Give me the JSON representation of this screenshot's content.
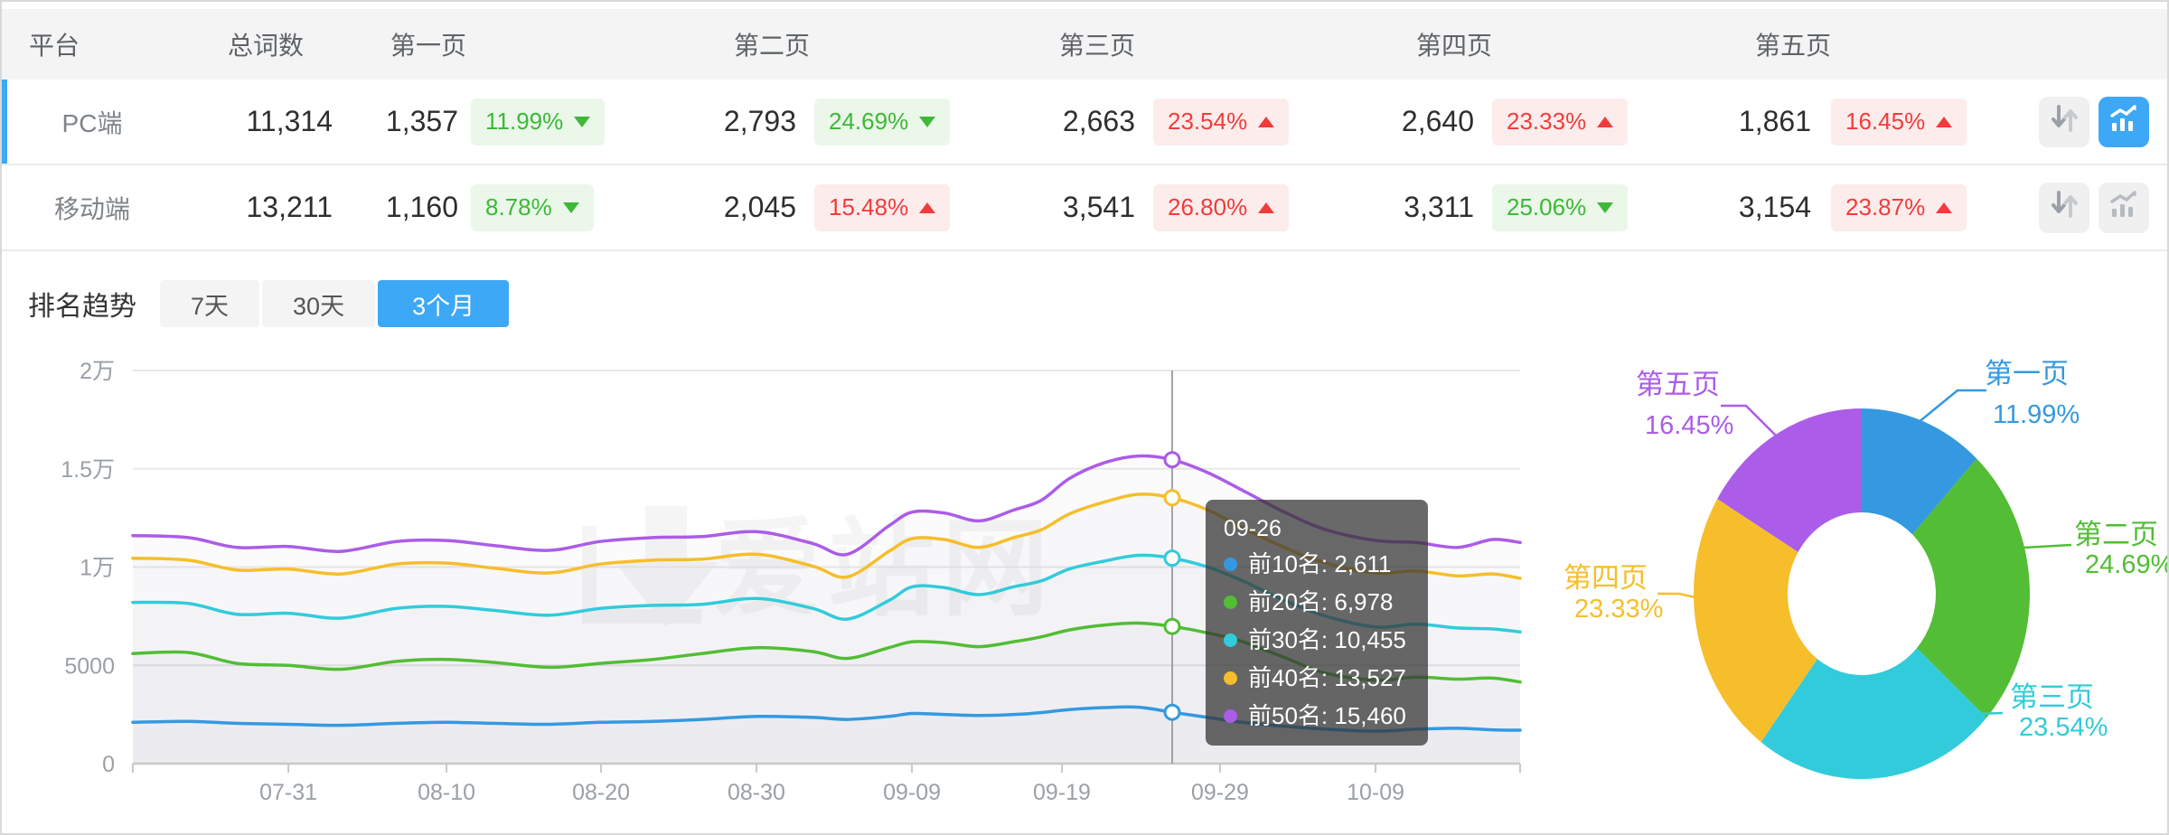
{
  "table": {
    "headers": [
      "平台",
      "总词数",
      "第一页",
      "第二页",
      "第三页",
      "第四页",
      "第五页"
    ],
    "rows": [
      {
        "platform": "PC端",
        "total": "11,314",
        "active": true,
        "pages": [
          {
            "value": "1,357",
            "pct": "11.99%",
            "dir": "down"
          },
          {
            "value": "2,793",
            "pct": "24.69%",
            "dir": "down"
          },
          {
            "value": "2,663",
            "pct": "23.54%",
            "dir": "up"
          },
          {
            "value": "2,640",
            "pct": "23.33%",
            "dir": "up"
          },
          {
            "value": "1,861",
            "pct": "16.45%",
            "dir": "up"
          }
        ]
      },
      {
        "platform": "移动端",
        "total": "13,211",
        "active": false,
        "pages": [
          {
            "value": "1,160",
            "pct": "8.78%",
            "dir": "down"
          },
          {
            "value": "2,045",
            "pct": "15.48%",
            "dir": "up"
          },
          {
            "value": "3,541",
            "pct": "26.80%",
            "dir": "up"
          },
          {
            "value": "3,311",
            "pct": "25.06%",
            "dir": "down"
          },
          {
            "value": "3,154",
            "pct": "23.87%",
            "dir": "up"
          }
        ]
      }
    ]
  },
  "trend": {
    "title": "排名趋势",
    "tabs": [
      {
        "label": "7天",
        "active": false
      },
      {
        "label": "30天",
        "active": false
      },
      {
        "label": "3个月",
        "active": true
      }
    ]
  },
  "colors": {
    "accent": "#3da8f5",
    "up_red": "#f23c3c",
    "down_green": "#3eb838",
    "series_blue": "#3499e0",
    "series_green": "#52bd35",
    "series_cyan": "#32cbdb",
    "series_yellow": "#f6be2b",
    "series_purple": "#ab5ce8"
  },
  "watermark": "爱站网",
  "tooltip": {
    "date": "09-26",
    "items": [
      {
        "name": "前10名",
        "value": "2,611",
        "color": "#3499e0"
      },
      {
        "name": "前20名",
        "value": "6,978",
        "color": "#52bd35"
      },
      {
        "name": "前30名",
        "value": "10,455",
        "color": "#32cbdb"
      },
      {
        "name": "前40名",
        "value": "13,527",
        "color": "#f6be2b"
      },
      {
        "name": "前50名",
        "value": "15,460",
        "color": "#ab5ce8"
      }
    ]
  },
  "chart_data": [
    {
      "type": "line",
      "title": "排名趋势 3个月",
      "ylim": [
        0,
        20000
      ],
      "grid": true,
      "y_ticks": [
        {
          "label": "2万",
          "value": 20000
        },
        {
          "label": "1.5万",
          "value": 15000
        },
        {
          "label": "1万",
          "value": 10000
        },
        {
          "label": "5000",
          "value": 5000
        },
        {
          "label": "0",
          "value": 0
        }
      ],
      "x_ticks": [
        {
          "label": "07-31",
          "f": 0.1121
        },
        {
          "label": "08-10",
          "f": 0.2261
        },
        {
          "label": "08-20",
          "f": 0.3375
        },
        {
          "label": "08-30",
          "f": 0.4495
        },
        {
          "label": "09-09",
          "f": 0.5616
        },
        {
          "label": "09-19",
          "f": 0.6697
        },
        {
          "label": "09-29",
          "f": 0.7837
        },
        {
          "label": "10-09",
          "f": 0.8958
        }
      ],
      "crosshair": {
        "date": "09-26",
        "f": 0.7492
      },
      "f": [
        0,
        0.04,
        0.075,
        0.112,
        0.15,
        0.19,
        0.226,
        0.26,
        0.3,
        0.337,
        0.375,
        0.41,
        0.45,
        0.49,
        0.515,
        0.545,
        0.562,
        0.585,
        0.61,
        0.635,
        0.655,
        0.675,
        0.7,
        0.725,
        0.7492,
        0.775,
        0.8,
        0.83,
        0.86,
        0.896,
        0.925,
        0.955,
        0.98,
        1.0
      ],
      "series": [
        {
          "name": "前10名",
          "color": "#3499e0",
          "v": [
            2100,
            2150,
            2050,
            2000,
            1950,
            2050,
            2100,
            2050,
            2000,
            2100,
            2150,
            2250,
            2400,
            2350,
            2250,
            2400,
            2550,
            2500,
            2450,
            2500,
            2600,
            2750,
            2850,
            2870,
            2611,
            2350,
            2100,
            1900,
            1750,
            1650,
            1750,
            1800,
            1720,
            1700
          ]
        },
        {
          "name": "前20名",
          "color": "#52bd35",
          "v": [
            5600,
            5650,
            5100,
            5000,
            4800,
            5200,
            5300,
            5150,
            4900,
            5100,
            5300,
            5600,
            5900,
            5700,
            5350,
            5900,
            6200,
            6150,
            5950,
            6200,
            6450,
            6800,
            7050,
            7150,
            6978,
            6650,
            6200,
            5400,
            4600,
            4250,
            4400,
            4300,
            4350,
            4150
          ]
        },
        {
          "name": "前30名",
          "color": "#32cbdb",
          "v": [
            8200,
            8150,
            7600,
            7650,
            7400,
            7900,
            8000,
            7800,
            7550,
            7900,
            8050,
            8100,
            8400,
            7900,
            7350,
            8300,
            9000,
            8950,
            8600,
            9000,
            9300,
            9900,
            10300,
            10600,
            10455,
            10000,
            9300,
            8300,
            7500,
            6950,
            7100,
            6900,
            6850,
            6700
          ]
        },
        {
          "name": "前40名",
          "color": "#f6be2b",
          "v": [
            10450,
            10350,
            9850,
            9900,
            9650,
            10150,
            10200,
            9950,
            9700,
            10150,
            10350,
            10400,
            10650,
            10050,
            9500,
            10800,
            11450,
            11400,
            11000,
            11500,
            11900,
            12700,
            13300,
            13700,
            13527,
            12900,
            12000,
            11000,
            10200,
            9700,
            9800,
            9550,
            9650,
            9430
          ]
        },
        {
          "name": "前50名",
          "color": "#ab5ce8",
          "v": [
            11600,
            11500,
            11000,
            11050,
            10800,
            11300,
            11350,
            11100,
            10850,
            11300,
            11500,
            11550,
            11800,
            11200,
            10650,
            12100,
            12800,
            12750,
            12350,
            12900,
            13400,
            14500,
            15300,
            15650,
            15460,
            14800,
            13900,
            12800,
            11900,
            11350,
            11250,
            11000,
            11400,
            11250
          ]
        }
      ]
    },
    {
      "type": "pie",
      "donut": true,
      "items": [
        {
          "name": "第一页",
          "pct": 11.99,
          "label": "11.99%",
          "color": "#3499e0"
        },
        {
          "name": "第二页",
          "pct": 24.69,
          "label": "24.69%",
          "color": "#52bd35"
        },
        {
          "name": "第三页",
          "pct": 23.54,
          "label": "23.54%",
          "color": "#32cbdb"
        },
        {
          "name": "第四页",
          "pct": 23.33,
          "label": "23.33%",
          "color": "#f6be2b"
        },
        {
          "name": "第五页",
          "pct": 16.45,
          "label": "16.45%",
          "color": "#ab5ce8"
        }
      ]
    }
  ]
}
